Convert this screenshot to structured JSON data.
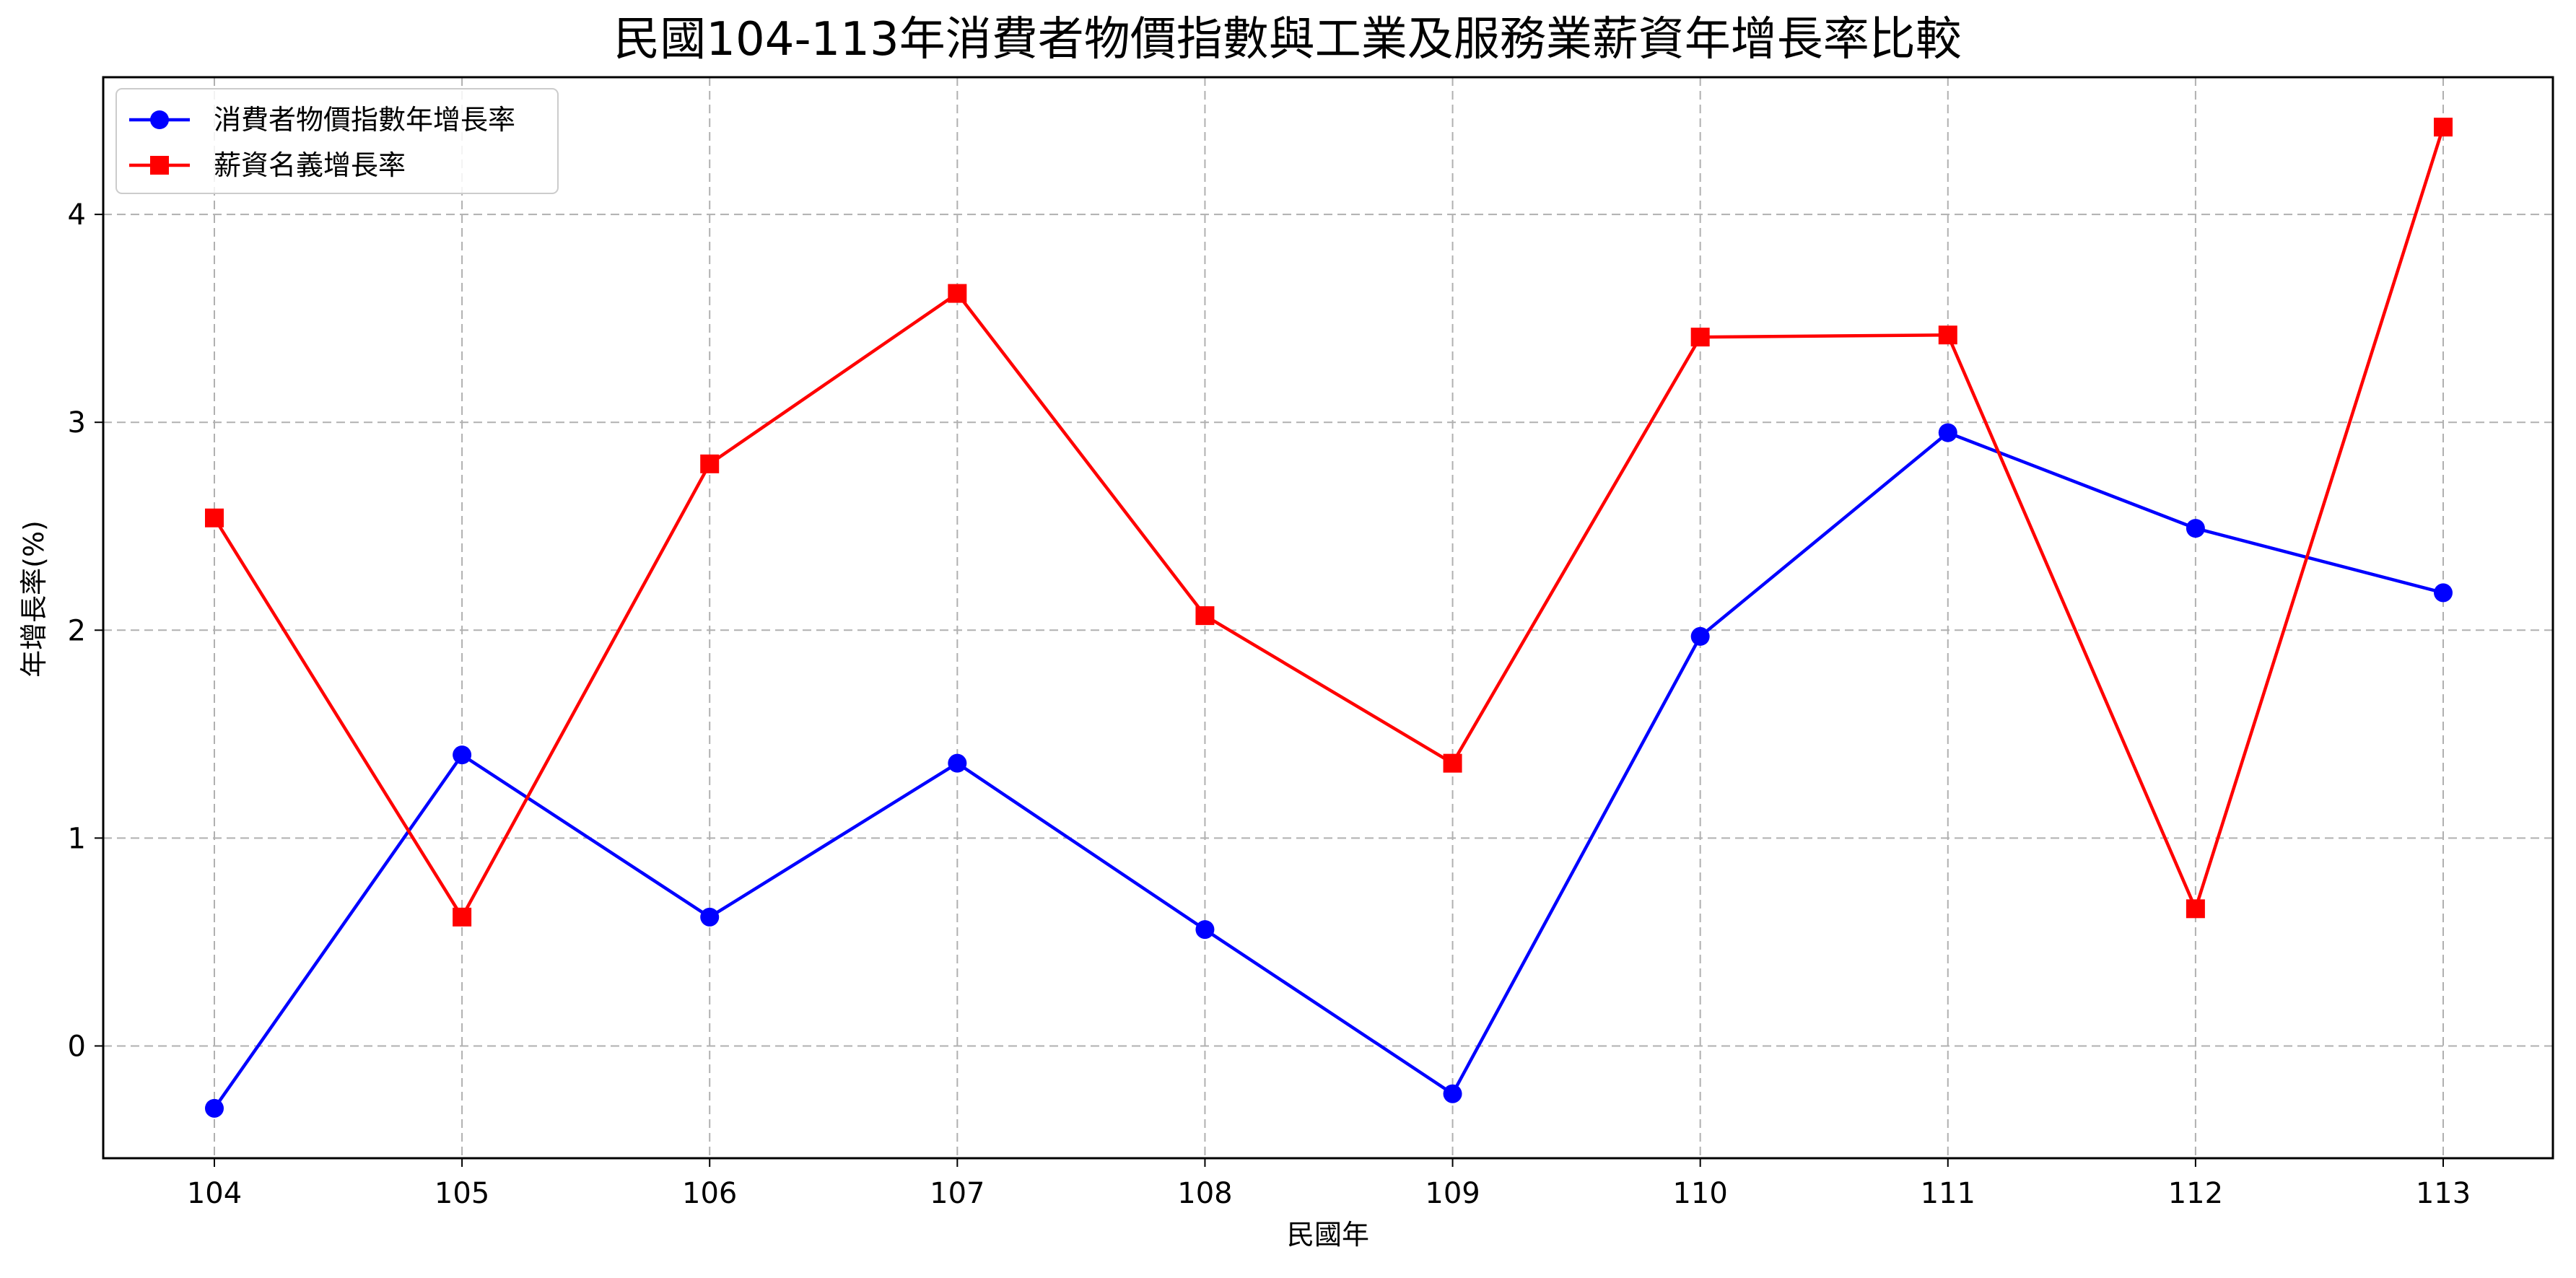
{
  "chart_data": {
    "type": "line",
    "title": "民國104-113年消費者物價指數與工業及服務業薪資年增長率比較",
    "xlabel": "民國年",
    "ylabel": "年增長率(%)",
    "categories": [
      "104",
      "105",
      "106",
      "107",
      "108",
      "109",
      "110",
      "111",
      "112",
      "113"
    ],
    "series": [
      {
        "name": "消費者物價指數年增長率",
        "color": "#0000ff",
        "marker": "circle",
        "values": [
          -0.3,
          1.4,
          0.62,
          1.36,
          0.56,
          -0.23,
          1.97,
          2.95,
          2.49,
          2.18
        ]
      },
      {
        "name": "薪資名義增長率",
        "color": "#ff0000",
        "marker": "square",
        "values": [
          2.54,
          0.62,
          2.8,
          3.62,
          2.07,
          1.36,
          3.41,
          3.42,
          0.66,
          4.42
        ]
      }
    ],
    "yticks": [
      0,
      1,
      2,
      3,
      4
    ],
    "ylim": [
      -0.54,
      4.66
    ],
    "grid": true,
    "grid_color": "#b0b0b0",
    "legend_position": "upper-left"
  }
}
